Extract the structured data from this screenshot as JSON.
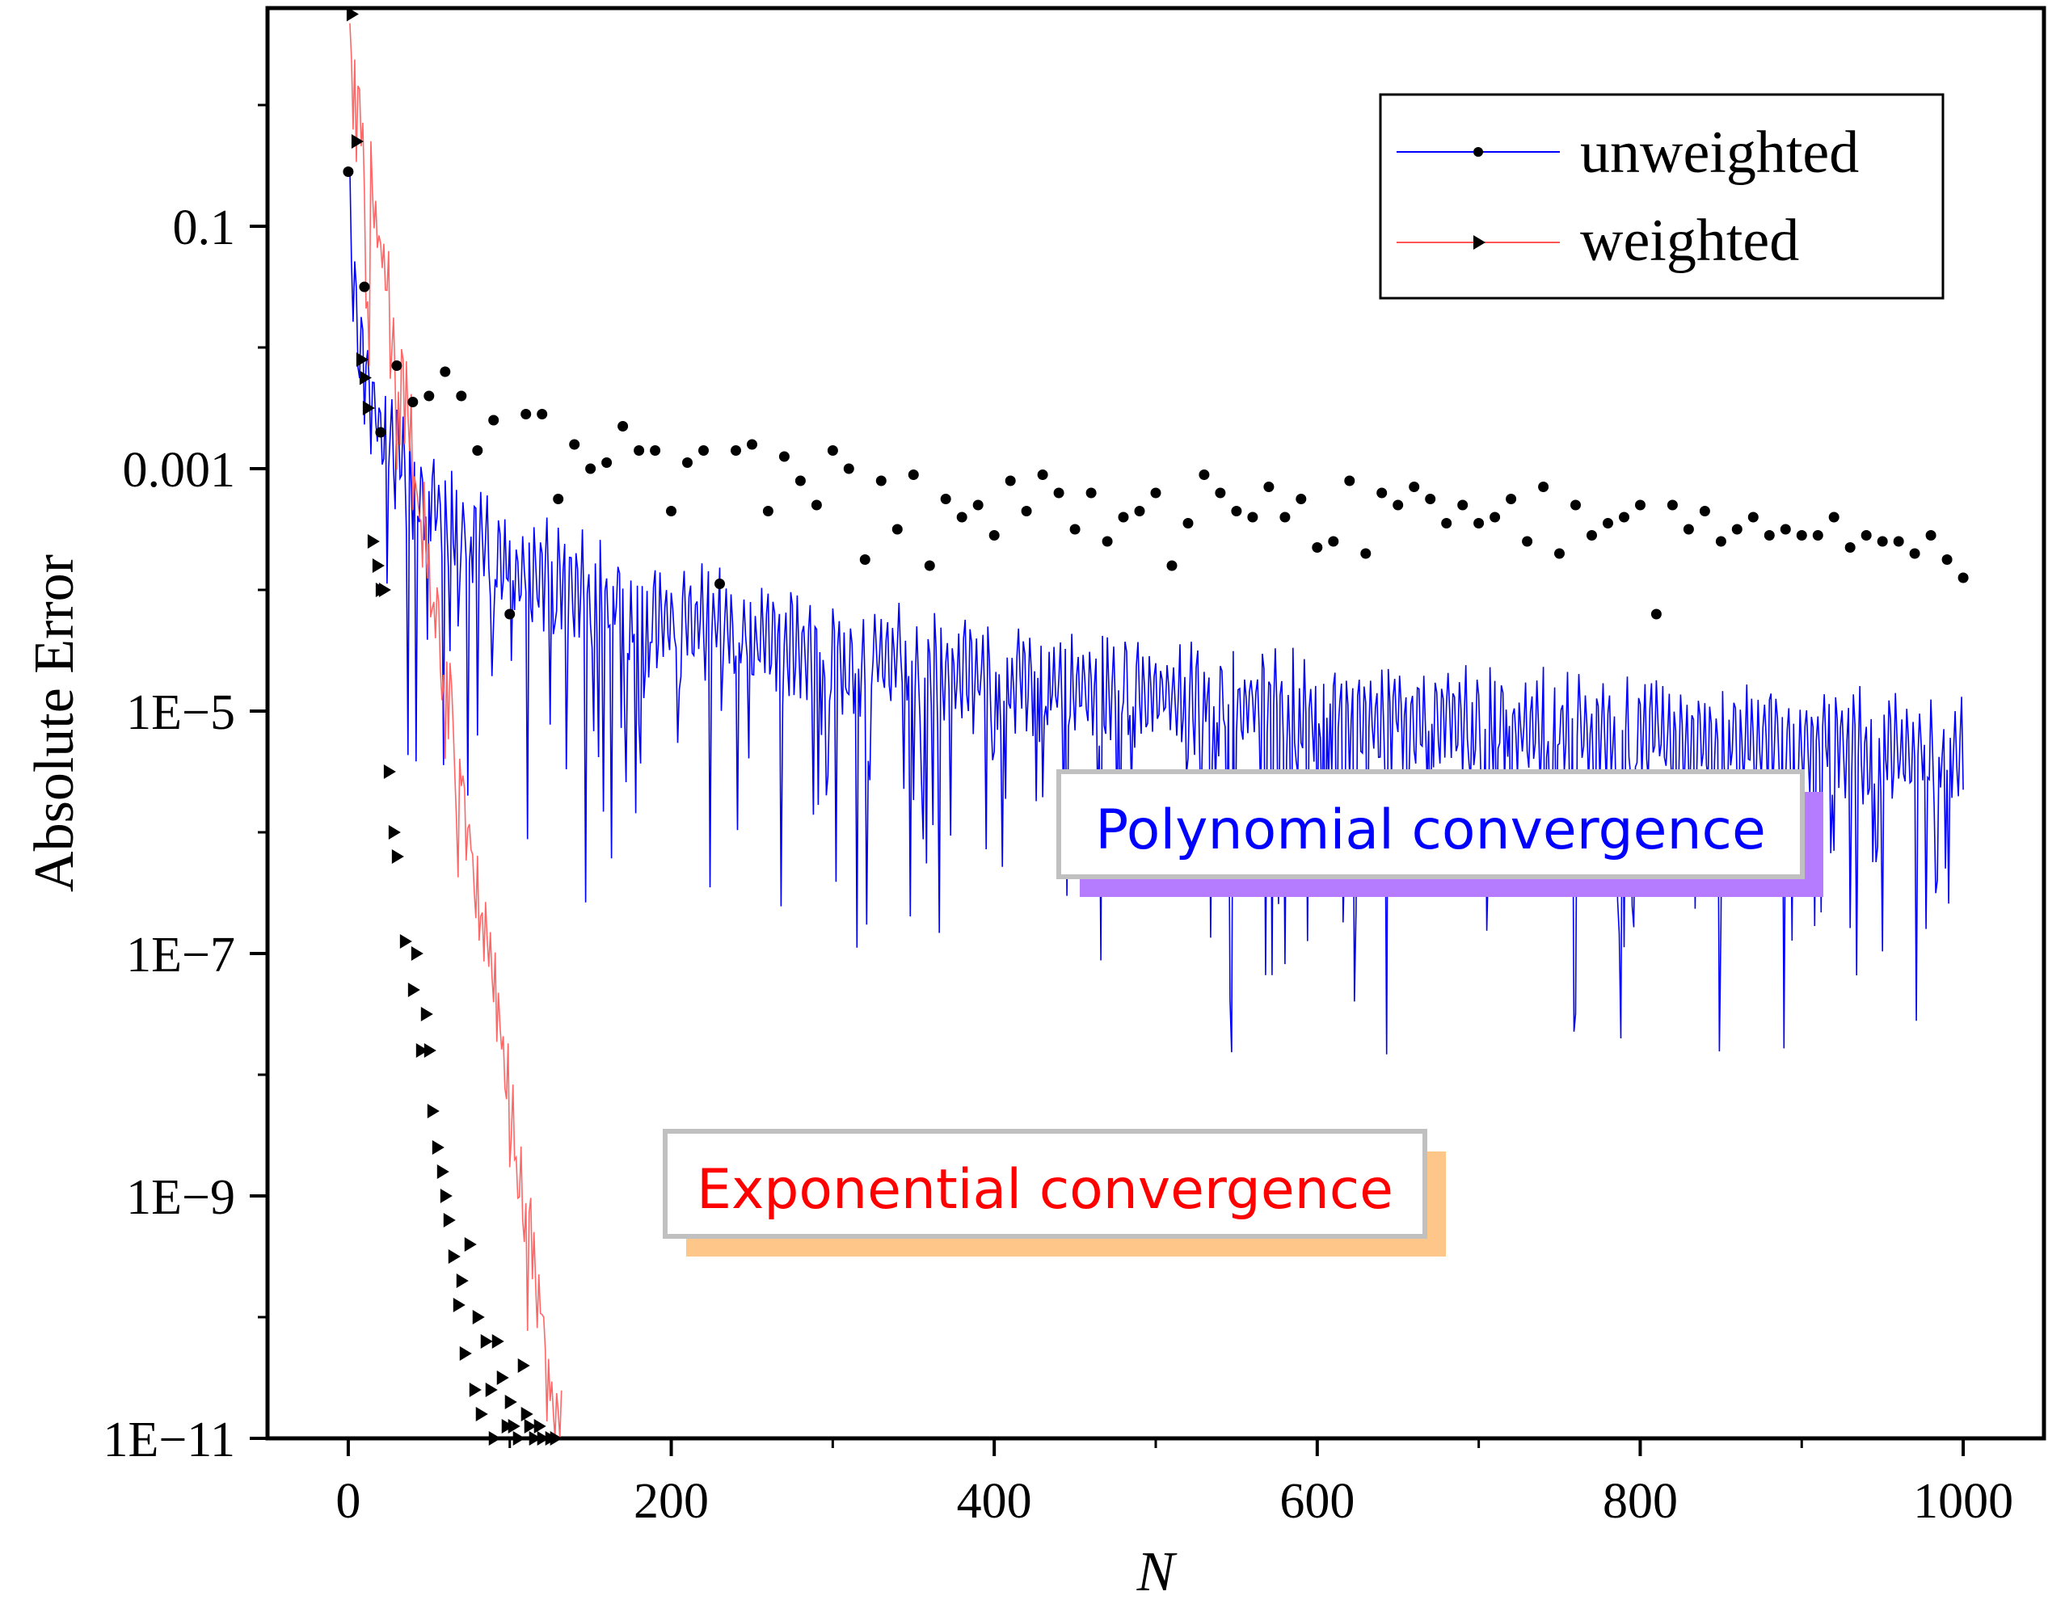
{
  "chart_data": {
    "type": "line",
    "title": "",
    "xlabel": "N",
    "ylabel": "Absolute Error",
    "xlim": [
      -50,
      1050
    ],
    "ylim_log10": [
      -11,
      0.8
    ],
    "y_scale": "log",
    "x_ticks": [
      0,
      200,
      400,
      600,
      800,
      1000
    ],
    "x_tick_labels": [
      "0",
      "200",
      "400",
      "600",
      "800",
      "1000"
    ],
    "y_ticks_log10": [
      -1,
      -3,
      -5,
      -7,
      -9,
      -11
    ],
    "y_tick_labels": [
      "0.1",
      "0.001",
      "1E−5",
      "1E−7",
      "1E−9",
      "1E−11"
    ],
    "legend": {
      "position": "top-right",
      "entries": [
        "unweighted",
        "weighted"
      ]
    },
    "series": [
      {
        "name": "unweighted",
        "color": "#0000ff",
        "marker": "circle",
        "trend": "polynomial decay, about 0.3 at N=1 to about 4E-4 at N=1000",
        "marker_x": [
          0,
          10,
          20,
          30,
          40,
          50,
          60,
          70,
          80,
          90,
          100,
          110,
          120,
          130,
          140,
          150,
          160,
          170,
          180,
          190,
          200,
          210,
          220,
          230,
          240,
          250,
          260,
          270,
          280,
          290,
          300,
          310,
          320,
          330,
          340,
          350,
          360,
          370,
          380,
          390,
          400,
          410,
          420,
          430,
          440,
          450,
          460,
          470,
          480,
          490,
          500,
          510,
          520,
          530,
          540,
          550,
          560,
          570,
          580,
          590,
          600,
          610,
          620,
          630,
          640,
          650,
          660,
          670,
          680,
          690,
          700,
          710,
          720,
          730,
          740,
          750,
          760,
          770,
          780,
          790,
          800,
          810,
          820,
          830,
          840,
          850,
          860,
          870,
          880,
          890,
          900,
          910,
          920,
          930,
          940,
          950,
          960,
          970,
          980,
          990,
          1000
        ],
        "marker_log10_y": [
          -0.55,
          -1.5,
          -2.7,
          -2.15,
          -2.45,
          -2.4,
          -2.2,
          -2.4,
          -2.85,
          -2.6,
          -4.2,
          -2.55,
          -2.55,
          -3.25,
          -2.8,
          -3.0,
          -2.95,
          -2.65,
          -2.85,
          -2.85,
          -3.35,
          -2.95,
          -2.85,
          -3.95,
          -2.85,
          -2.8,
          -3.35,
          -2.9,
          -3.1,
          -3.3,
          -2.85,
          -3.0,
          -3.75,
          -3.1,
          -3.5,
          -3.05,
          -3.8,
          -3.25,
          -3.4,
          -3.3,
          -3.55,
          -3.1,
          -3.35,
          -3.05,
          -3.2,
          -3.5,
          -3.2,
          -3.6,
          -3.4,
          -3.35,
          -3.2,
          -3.8,
          -3.45,
          -3.05,
          -3.2,
          -3.35,
          -3.4,
          -3.15,
          -3.4,
          -3.25,
          -3.65,
          -3.6,
          -3.1,
          -3.7,
          -3.2,
          -3.3,
          -3.15,
          -3.25,
          -3.45,
          -3.3,
          -3.45,
          -3.4,
          -3.25,
          -3.6,
          -3.15,
          -3.7,
          -3.3,
          -3.55,
          -3.45,
          -3.4,
          -3.3,
          -4.2,
          -3.3,
          -3.5,
          -3.35,
          -3.6,
          -3.5,
          -3.4,
          -3.55,
          -3.5,
          -3.55,
          -3.55,
          -3.4,
          -3.65,
          -3.55,
          -3.6,
          -3.6,
          -3.7,
          -3.55,
          -3.75,
          -3.9,
          -3.65,
          -4.2,
          -3.75,
          -3.6,
          -3.5,
          -4.25,
          -3.9,
          -3.7,
          -3.75,
          -4.2
        ]
      },
      {
        "name": "weighted",
        "color": "#ff0000",
        "marker": "triangle-right",
        "trend": "exponential decay, about 0.6 at N=1 down to 1E-11 near N=130",
        "marker_x": [
          2,
          5,
          8,
          10,
          12,
          15,
          18,
          20,
          22,
          25,
          28,
          30,
          35,
          40,
          42,
          45,
          48,
          50,
          52,
          55,
          58,
          60,
          62,
          65,
          68,
          70,
          72,
          75,
          78,
          80,
          82,
          85,
          88,
          90,
          92,
          95,
          98,
          100,
          102,
          105,
          108,
          110,
          112,
          115,
          118,
          120,
          125,
          128
        ],
        "marker_log10_y": [
          0.75,
          -0.3,
          -2.1,
          -2.25,
          -2.5,
          -3.6,
          -3.8,
          -4.0,
          -4.0,
          -5.5,
          -6.0,
          -6.2,
          -6.9,
          -7.3,
          -7.0,
          -7.8,
          -7.5,
          -7.8,
          -8.3,
          -8.6,
          -8.8,
          -9.0,
          -9.2,
          -9.5,
          -9.9,
          -9.7,
          -10.3,
          -9.4,
          -10.6,
          -10.0,
          -10.8,
          -10.2,
          -10.6,
          -11.0,
          -10.2,
          -10.5,
          -10.9,
          -10.7,
          -10.9,
          -11.0,
          -10.4,
          -10.8,
          -10.9,
          -11.0,
          -10.9,
          -11.0,
          -11.0,
          -11.0
        ]
      }
    ],
    "annotations": [
      {
        "id": "poly",
        "text": "Polynomial convergence",
        "color": "#0000ff",
        "shadow": "#b57cff"
      },
      {
        "id": "expo",
        "text": "Exponential convergence",
        "color": "#ff0000",
        "shadow": "#ffc68a"
      }
    ]
  }
}
